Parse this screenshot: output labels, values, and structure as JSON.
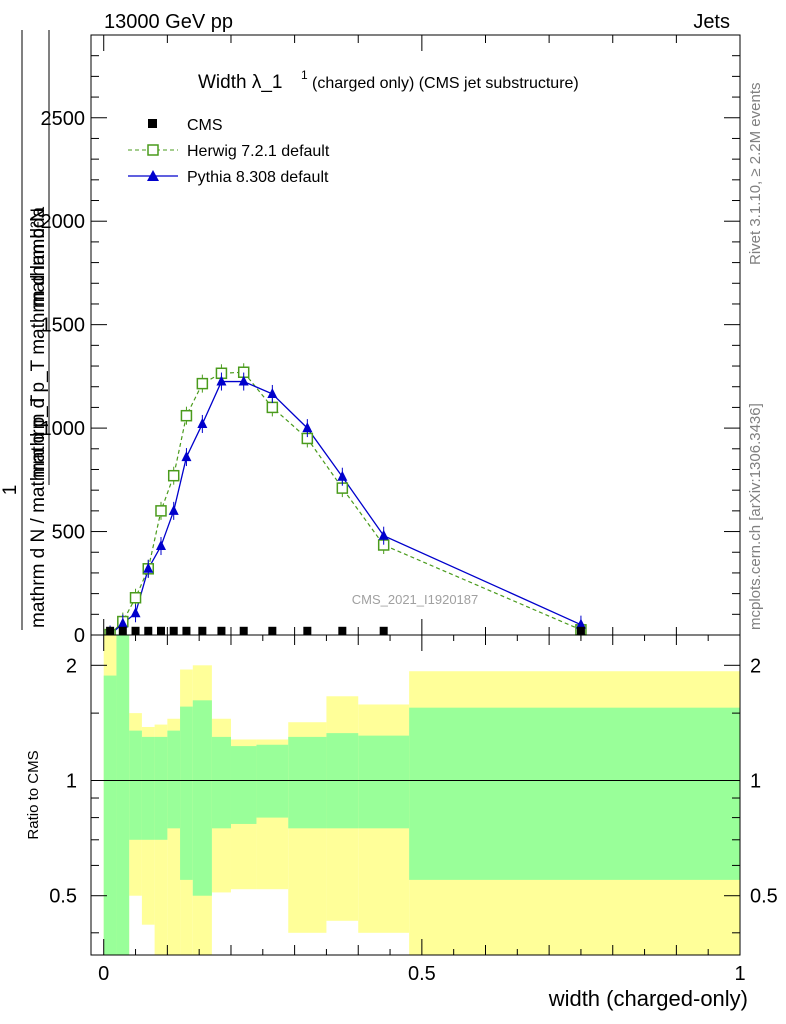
{
  "header": {
    "left": "13000 GeV pp",
    "right": "Jets",
    "rivet": "Rivet 3.1.10, ≥ 2.2M events",
    "mcplots": "mcplots.cern.ch [arXiv:1306.3436]"
  },
  "main_plot": {
    "title_main": "Width λ_1",
    "title_sup": "1",
    "title_sub": "(charged only) (CMS jet substructure)",
    "ylabel_frac_left": "1",
    "ylabel_num": "mathrm d²N",
    "ylabel_den": "mathrm d p_T mathrm d lambda",
    "ylabel_bottom": "mathrm d N / mathrm d p_T",
    "yticks": [
      "0",
      "500",
      "1000",
      "1500",
      "2000",
      "2500"
    ],
    "watermark": "CMS_2021_I1920187"
  },
  "ratio_plot": {
    "ylabel": "Ratio to CMS",
    "yticks_left": [
      "0.5",
      "1",
      "2"
    ],
    "yticks_right": [
      "0.5",
      "1",
      "2"
    ],
    "xticks": [
      "0",
      "0.5",
      "1"
    ],
    "xlabel": "width (charged-only)"
  },
  "chart_data": {
    "type": "line",
    "x": [
      0.01,
      0.03,
      0.05,
      0.07,
      0.09,
      0.11,
      0.13,
      0.155,
      0.185,
      0.22,
      0.265,
      0.32,
      0.375,
      0.44,
      0.75
    ],
    "x_edges": [
      0.0,
      0.02,
      0.04,
      0.06,
      0.08,
      0.1,
      0.12,
      0.14,
      0.17,
      0.2,
      0.24,
      0.29,
      0.35,
      0.4,
      0.48,
      1.0
    ],
    "xlim": [
      -0.02,
      1.0
    ],
    "ylim": [
      0,
      2900
    ],
    "series": [
      {
        "name": "CMS",
        "color": "#000000",
        "marker": "square",
        "values": [
          1,
          1,
          1,
          1,
          1,
          1,
          1,
          1,
          1,
          1,
          1,
          1,
          1,
          1,
          1
        ]
      },
      {
        "name": "Herwig 7.2.1 default",
        "color": "#4a9b1c",
        "marker": "open-square",
        "values": [
          2,
          65,
          180,
          320,
          600,
          770,
          1060,
          1215,
          1265,
          1270,
          1100,
          950,
          710,
          435,
          25
        ]
      },
      {
        "name": "Pythia 8.308 default",
        "color": "#0000cc",
        "marker": "triangle",
        "values": [
          2,
          55,
          105,
          320,
          430,
          600,
          860,
          1020,
          1225,
          1225,
          1165,
          1000,
          765,
          480,
          50
        ]
      }
    ],
    "ratio": {
      "ylim": [
        0.35,
        2.4
      ],
      "scale": "log",
      "reference": 1,
      "green_band": {
        "upper": [
          1.88,
          2.4,
          1.35,
          1.3,
          1.3,
          1.35,
          1.56,
          1.62,
          1.3,
          1.23,
          1.24,
          1.3,
          1.33,
          1.31,
          1.55
        ],
        "lower": [
          0.35,
          0.35,
          0.7,
          0.7,
          0.7,
          0.75,
          0.55,
          0.5,
          0.75,
          0.77,
          0.8,
          0.75,
          0.75,
          0.75,
          0.55
        ]
      },
      "yellow_band": {
        "upper": [
          2.4,
          2.4,
          1.5,
          1.38,
          1.4,
          1.45,
          1.95,
          2.0,
          1.45,
          1.28,
          1.28,
          1.42,
          1.66,
          1.58,
          1.93
        ],
        "lower": [
          0.35,
          0.35,
          0.5,
          0.42,
          0.35,
          0.35,
          0.35,
          0.35,
          0.51,
          0.52,
          0.52,
          0.4,
          0.43,
          0.4,
          0.35
        ]
      }
    }
  }
}
